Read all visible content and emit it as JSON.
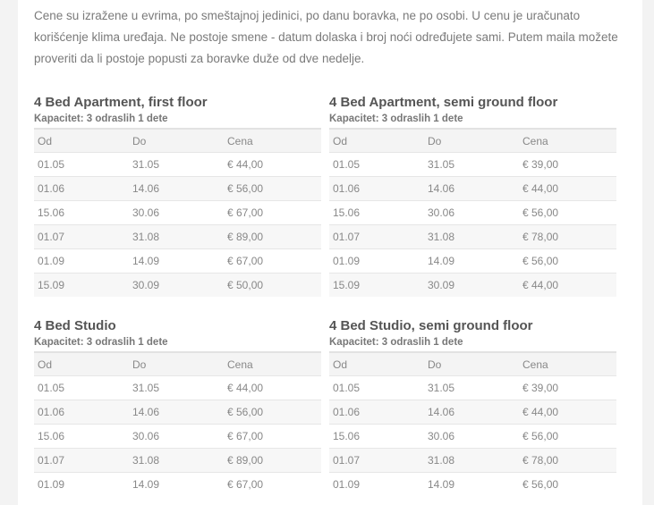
{
  "intro": "Cene su izražene u evrima, po smeštajnoj jedinici, po danu boravka, ne po osobi. U cenu je uračunato korišćenje klima uređaja. Ne postoje smene - datum dolaska i broj noći određujete sami. Putem maila možete proveriti da li postoje popusti za boravke duže od dve nedelje.",
  "columns": [
    "Od",
    "Do",
    "Cena"
  ],
  "units": [
    {
      "title": "4 Bed Apartment, first floor",
      "capacity": "Kapacitet: 3 odraslih 1 dete",
      "rows": [
        [
          "01.05",
          "31.05",
          "€ 44,00"
        ],
        [
          "01.06",
          "14.06",
          "€ 56,00"
        ],
        [
          "15.06",
          "30.06",
          "€ 67,00"
        ],
        [
          "01.07",
          "31.08",
          "€ 89,00"
        ],
        [
          "01.09",
          "14.09",
          "€ 67,00"
        ],
        [
          "15.09",
          "30.09",
          "€ 50,00"
        ]
      ]
    },
    {
      "title": "4 Bed Apartment, semi ground floor",
      "capacity": "Kapacitet: 3 odraslih 1 dete",
      "rows": [
        [
          "01.05",
          "31.05",
          "€ 39,00"
        ],
        [
          "01.06",
          "14.06",
          "€ 44,00"
        ],
        [
          "15.06",
          "30.06",
          "€ 56,00"
        ],
        [
          "01.07",
          "31.08",
          "€ 78,00"
        ],
        [
          "01.09",
          "14.09",
          "€ 56,00"
        ],
        [
          "15.09",
          "30.09",
          "€ 44,00"
        ]
      ]
    },
    {
      "title": "4 Bed Studio",
      "capacity": "Kapacitet: 3 odraslih 1 dete",
      "rows": [
        [
          "01.05",
          "31.05",
          "€ 44,00"
        ],
        [
          "01.06",
          "14.06",
          "€ 56,00"
        ],
        [
          "15.06",
          "30.06",
          "€ 67,00"
        ],
        [
          "01.07",
          "31.08",
          "€ 89,00"
        ],
        [
          "01.09",
          "14.09",
          "€ 67,00"
        ]
      ]
    },
    {
      "title": "4 Bed Studio, semi ground floor",
      "capacity": "Kapacitet: 3 odraslih 1 dete",
      "rows": [
        [
          "01.05",
          "31.05",
          "€ 39,00"
        ],
        [
          "01.06",
          "14.06",
          "€ 44,00"
        ],
        [
          "15.06",
          "30.06",
          "€ 56,00"
        ],
        [
          "01.07",
          "31.08",
          "€ 78,00"
        ],
        [
          "01.09",
          "14.09",
          "€ 56,00"
        ]
      ]
    }
  ]
}
